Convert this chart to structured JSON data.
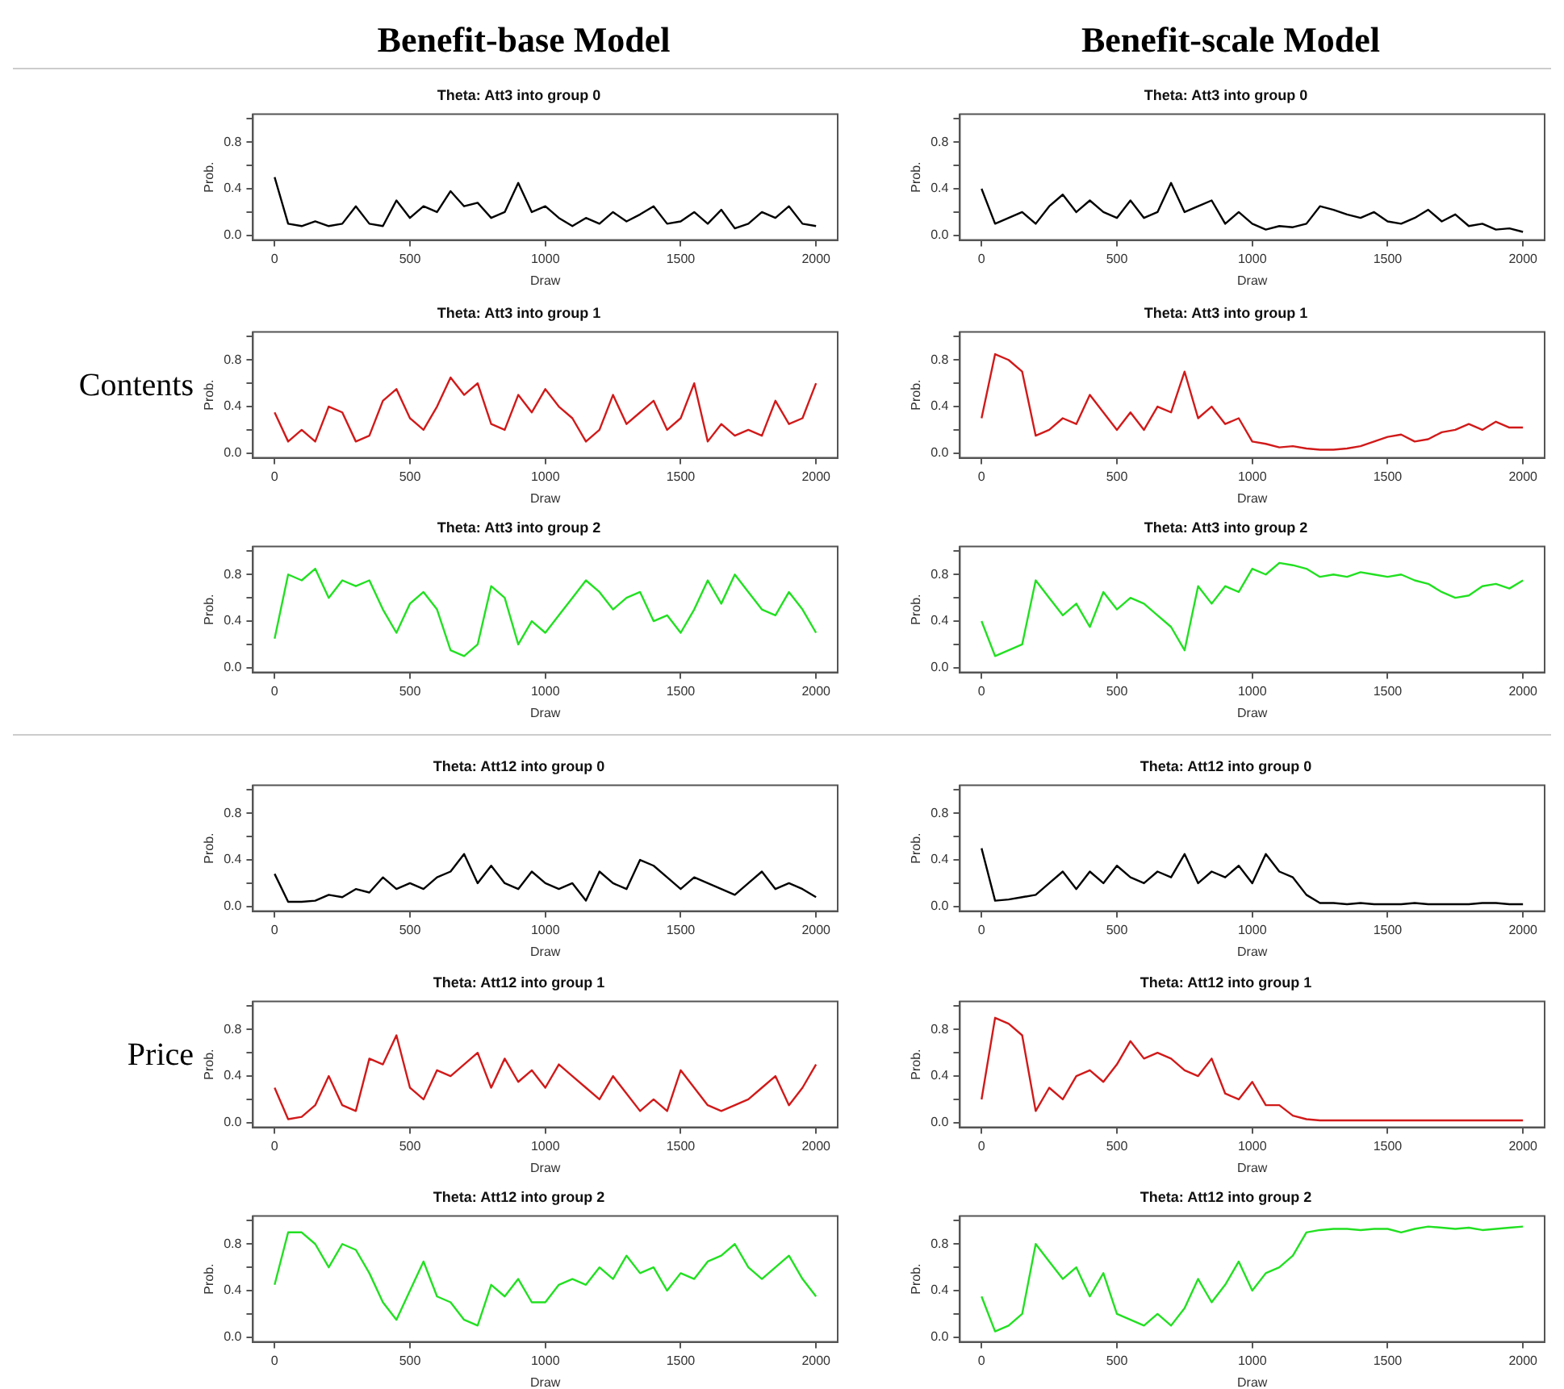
{
  "chart_data": [
    {
      "type": "line",
      "title": "Theta: Att3 into group 0",
      "xlabel": "Draw",
      "ylabel": "Prob.",
      "annotations": [
        "Benefit-base Model"
      ],
      "color": "#000000",
      "xlim": [
        -80,
        2080
      ],
      "ylim": [
        -0.04,
        1.04
      ],
      "xticks": [
        0,
        500,
        1000,
        1500,
        2000
      ],
      "yticks": [
        {
          "value": 0,
          "label": "0.0"
        },
        {
          "value": 0.2,
          "label": null
        },
        {
          "value": 0.4,
          "label": "0.4"
        },
        {
          "value": 0.6,
          "label": null
        },
        {
          "value": 0.8,
          "label": "0.8"
        },
        {
          "value": 1,
          "label": null
        }
      ],
      "x": [
        0,
        50,
        100,
        150,
        200,
        250,
        300,
        350,
        400,
        450,
        500,
        550,
        600,
        650,
        700,
        750,
        800,
        850,
        900,
        950,
        1000,
        1050,
        1100,
        1150,
        1200,
        1250,
        1300,
        1350,
        1400,
        1450,
        1500,
        1550,
        1600,
        1650,
        1700,
        1750,
        1800,
        1850,
        1900,
        1950,
        2000
      ],
      "values": [
        0.5,
        0.1,
        0.08,
        0.12,
        0.08,
        0.1,
        0.25,
        0.1,
        0.08,
        0.3,
        0.15,
        0.25,
        0.2,
        0.38,
        0.25,
        0.28,
        0.15,
        0.2,
        0.45,
        0.2,
        0.25,
        0.15,
        0.08,
        0.15,
        0.1,
        0.2,
        0.12,
        0.18,
        0.25,
        0.1,
        0.12,
        0.2,
        0.1,
        0.22,
        0.06,
        0.1,
        0.2,
        0.15,
        0.25,
        0.1,
        0.08
      ]
    },
    {
      "type": "line",
      "title": "Theta: Att3 into group 0",
      "xlabel": "Draw",
      "ylabel": "Prob.",
      "annotations": [
        "Benefit-scale Model"
      ],
      "color": "#000000",
      "xlim": [
        -80,
        2080
      ],
      "ylim": [
        -0.04,
        1.04
      ],
      "xticks": [
        0,
        500,
        1000,
        1500,
        2000
      ],
      "yticks": [
        {
          "value": 0,
          "label": "0.0"
        },
        {
          "value": 0.2,
          "label": null
        },
        {
          "value": 0.4,
          "label": "0.4"
        },
        {
          "value": 0.6,
          "label": null
        },
        {
          "value": 0.8,
          "label": "0.8"
        },
        {
          "value": 1,
          "label": null
        }
      ],
      "x": [
        0,
        50,
        100,
        150,
        200,
        250,
        300,
        350,
        400,
        450,
        500,
        550,
        600,
        650,
        700,
        750,
        800,
        850,
        900,
        950,
        1000,
        1050,
        1100,
        1150,
        1200,
        1250,
        1300,
        1350,
        1400,
        1450,
        1500,
        1550,
        1600,
        1650,
        1700,
        1750,
        1800,
        1850,
        1900,
        1950,
        2000
      ],
      "values": [
        0.4,
        0.1,
        0.15,
        0.2,
        0.1,
        0.25,
        0.35,
        0.2,
        0.3,
        0.2,
        0.15,
        0.3,
        0.15,
        0.2,
        0.45,
        0.2,
        0.25,
        0.3,
        0.1,
        0.2,
        0.1,
        0.05,
        0.08,
        0.07,
        0.1,
        0.25,
        0.22,
        0.18,
        0.15,
        0.2,
        0.12,
        0.1,
        0.15,
        0.22,
        0.12,
        0.18,
        0.08,
        0.1,
        0.05,
        0.06,
        0.03
      ]
    },
    {
      "type": "line",
      "title": "Theta: Att3 into group 1",
      "xlabel": "Draw",
      "ylabel": "Prob.",
      "annotations": [
        "Contents"
      ],
      "color": "#d11a1a",
      "xlim": [
        -80,
        2080
      ],
      "ylim": [
        -0.04,
        1.04
      ],
      "xticks": [
        0,
        500,
        1000,
        1500,
        2000
      ],
      "yticks": [
        {
          "value": 0,
          "label": "0.0"
        },
        {
          "value": 0.2,
          "label": null
        },
        {
          "value": 0.4,
          "label": "0.4"
        },
        {
          "value": 0.6,
          "label": null
        },
        {
          "value": 0.8,
          "label": "0.8"
        },
        {
          "value": 1,
          "label": null
        }
      ],
      "x": [
        0,
        50,
        100,
        150,
        200,
        250,
        300,
        350,
        400,
        450,
        500,
        550,
        600,
        650,
        700,
        750,
        800,
        850,
        900,
        950,
        1000,
        1050,
        1100,
        1150,
        1200,
        1250,
        1300,
        1350,
        1400,
        1450,
        1500,
        1550,
        1600,
        1650,
        1700,
        1750,
        1800,
        1850,
        1900,
        1950,
        2000
      ],
      "values": [
        0.35,
        0.1,
        0.2,
        0.1,
        0.4,
        0.35,
        0.1,
        0.15,
        0.45,
        0.55,
        0.3,
        0.2,
        0.4,
        0.65,
        0.5,
        0.6,
        0.25,
        0.2,
        0.5,
        0.35,
        0.55,
        0.4,
        0.3,
        0.1,
        0.2,
        0.5,
        0.25,
        0.35,
        0.45,
        0.2,
        0.3,
        0.6,
        0.1,
        0.25,
        0.15,
        0.2,
        0.15,
        0.45,
        0.25,
        0.3,
        0.6
      ]
    },
    {
      "type": "line",
      "title": "Theta: Att3 into group 1",
      "xlabel": "Draw",
      "ylabel": "Prob.",
      "color": "#d11a1a",
      "xlim": [
        -80,
        2080
      ],
      "ylim": [
        -0.04,
        1.04
      ],
      "xticks": [
        0,
        500,
        1000,
        1500,
        2000
      ],
      "yticks": [
        {
          "value": 0,
          "label": "0.0"
        },
        {
          "value": 0.2,
          "label": null
        },
        {
          "value": 0.4,
          "label": "0.4"
        },
        {
          "value": 0.6,
          "label": null
        },
        {
          "value": 0.8,
          "label": "0.8"
        },
        {
          "value": 1,
          "label": null
        }
      ],
      "x": [
        0,
        50,
        100,
        150,
        200,
        250,
        300,
        350,
        400,
        450,
        500,
        550,
        600,
        650,
        700,
        750,
        800,
        850,
        900,
        950,
        1000,
        1050,
        1100,
        1150,
        1200,
        1250,
        1300,
        1350,
        1400,
        1450,
        1500,
        1550,
        1600,
        1650,
        1700,
        1750,
        1800,
        1850,
        1900,
        1950,
        2000
      ],
      "values": [
        0.3,
        0.85,
        0.8,
        0.7,
        0.15,
        0.2,
        0.3,
        0.25,
        0.5,
        0.35,
        0.2,
        0.35,
        0.2,
        0.4,
        0.35,
        0.7,
        0.3,
        0.4,
        0.25,
        0.3,
        0.1,
        0.08,
        0.05,
        0.06,
        0.04,
        0.03,
        0.03,
        0.04,
        0.06,
        0.1,
        0.14,
        0.16,
        0.1,
        0.12,
        0.18,
        0.2,
        0.25,
        0.2,
        0.27,
        0.22,
        0.22
      ]
    },
    {
      "type": "line",
      "title": "Theta: Att3 into group 2",
      "xlabel": "Draw",
      "ylabel": "Prob.",
      "color": "#22e022",
      "xlim": [
        -80,
        2080
      ],
      "ylim": [
        -0.04,
        1.04
      ],
      "xticks": [
        0,
        500,
        1000,
        1500,
        2000
      ],
      "yticks": [
        {
          "value": 0,
          "label": "0.0"
        },
        {
          "value": 0.2,
          "label": null
        },
        {
          "value": 0.4,
          "label": "0.4"
        },
        {
          "value": 0.6,
          "label": null
        },
        {
          "value": 0.8,
          "label": "0.8"
        },
        {
          "value": 1,
          "label": null
        }
      ],
      "x": [
        0,
        50,
        100,
        150,
        200,
        250,
        300,
        350,
        400,
        450,
        500,
        550,
        600,
        650,
        700,
        750,
        800,
        850,
        900,
        950,
        1000,
        1050,
        1100,
        1150,
        1200,
        1250,
        1300,
        1350,
        1400,
        1450,
        1500,
        1550,
        1600,
        1650,
        1700,
        1750,
        1800,
        1850,
        1900,
        1950,
        2000
      ],
      "values": [
        0.25,
        0.8,
        0.75,
        0.85,
        0.6,
        0.75,
        0.7,
        0.75,
        0.5,
        0.3,
        0.55,
        0.65,
        0.5,
        0.15,
        0.1,
        0.2,
        0.7,
        0.6,
        0.2,
        0.4,
        0.3,
        0.45,
        0.6,
        0.75,
        0.65,
        0.5,
        0.6,
        0.65,
        0.4,
        0.45,
        0.3,
        0.5,
        0.75,
        0.55,
        0.8,
        0.65,
        0.5,
        0.45,
        0.65,
        0.5,
        0.3
      ]
    },
    {
      "type": "line",
      "title": "Theta: Att3 into group 2",
      "xlabel": "Draw",
      "ylabel": "Prob.",
      "color": "#22e022",
      "xlim": [
        -80,
        2080
      ],
      "ylim": [
        -0.04,
        1.04
      ],
      "xticks": [
        0,
        500,
        1000,
        1500,
        2000
      ],
      "yticks": [
        {
          "value": 0,
          "label": "0.0"
        },
        {
          "value": 0.2,
          "label": null
        },
        {
          "value": 0.4,
          "label": "0.4"
        },
        {
          "value": 0.6,
          "label": null
        },
        {
          "value": 0.8,
          "label": "0.8"
        },
        {
          "value": 1,
          "label": null
        }
      ],
      "x": [
        0,
        50,
        100,
        150,
        200,
        250,
        300,
        350,
        400,
        450,
        500,
        550,
        600,
        650,
        700,
        750,
        800,
        850,
        900,
        950,
        1000,
        1050,
        1100,
        1150,
        1200,
        1250,
        1300,
        1350,
        1400,
        1450,
        1500,
        1550,
        1600,
        1650,
        1700,
        1750,
        1800,
        1850,
        1900,
        1950,
        2000
      ],
      "values": [
        0.4,
        0.1,
        0.15,
        0.2,
        0.75,
        0.6,
        0.45,
        0.55,
        0.35,
        0.65,
        0.5,
        0.6,
        0.55,
        0.45,
        0.35,
        0.15,
        0.7,
        0.55,
        0.7,
        0.65,
        0.85,
        0.8,
        0.9,
        0.88,
        0.85,
        0.78,
        0.8,
        0.78,
        0.82,
        0.8,
        0.78,
        0.8,
        0.75,
        0.72,
        0.65,
        0.6,
        0.62,
        0.7,
        0.72,
        0.68,
        0.75
      ]
    },
    {
      "type": "line",
      "title": "Theta: Att12 into group 0",
      "xlabel": "Draw",
      "ylabel": "Prob.",
      "color": "#000000",
      "xlim": [
        -80,
        2080
      ],
      "ylim": [
        -0.04,
        1.04
      ],
      "xticks": [
        0,
        500,
        1000,
        1500,
        2000
      ],
      "yticks": [
        {
          "value": 0,
          "label": "0.0"
        },
        {
          "value": 0.2,
          "label": null
        },
        {
          "value": 0.4,
          "label": "0.4"
        },
        {
          "value": 0.6,
          "label": null
        },
        {
          "value": 0.8,
          "label": "0.8"
        },
        {
          "value": 1,
          "label": null
        }
      ],
      "x": [
        0,
        50,
        100,
        150,
        200,
        250,
        300,
        350,
        400,
        450,
        500,
        550,
        600,
        650,
        700,
        750,
        800,
        850,
        900,
        950,
        1000,
        1050,
        1100,
        1150,
        1200,
        1250,
        1300,
        1350,
        1400,
        1450,
        1500,
        1550,
        1600,
        1650,
        1700,
        1750,
        1800,
        1850,
        1900,
        1950,
        2000
      ],
      "values": [
        0.28,
        0.04,
        0.04,
        0.05,
        0.1,
        0.08,
        0.15,
        0.12,
        0.25,
        0.15,
        0.2,
        0.15,
        0.25,
        0.3,
        0.45,
        0.2,
        0.35,
        0.2,
        0.15,
        0.3,
        0.2,
        0.15,
        0.2,
        0.05,
        0.3,
        0.2,
        0.15,
        0.4,
        0.35,
        0.25,
        0.15,
        0.25,
        0.2,
        0.15,
        0.1,
        0.2,
        0.3,
        0.15,
        0.2,
        0.15,
        0.08
      ]
    },
    {
      "type": "line",
      "title": "Theta: Att12 into group 0",
      "xlabel": "Draw",
      "ylabel": "Prob.",
      "color": "#000000",
      "xlim": [
        -80,
        2080
      ],
      "ylim": [
        -0.04,
        1.04
      ],
      "xticks": [
        0,
        500,
        1000,
        1500,
        2000
      ],
      "yticks": [
        {
          "value": 0,
          "label": "0.0"
        },
        {
          "value": 0.2,
          "label": null
        },
        {
          "value": 0.4,
          "label": "0.4"
        },
        {
          "value": 0.6,
          "label": null
        },
        {
          "value": 0.8,
          "label": "0.8"
        },
        {
          "value": 1,
          "label": null
        }
      ],
      "x": [
        0,
        50,
        100,
        150,
        200,
        250,
        300,
        350,
        400,
        450,
        500,
        550,
        600,
        650,
        700,
        750,
        800,
        850,
        900,
        950,
        1000,
        1050,
        1100,
        1150,
        1200,
        1250,
        1300,
        1350,
        1400,
        1450,
        1500,
        1550,
        1600,
        1650,
        1700,
        1750,
        1800,
        1850,
        1900,
        1950,
        2000
      ],
      "values": [
        0.5,
        0.05,
        0.06,
        0.08,
        0.1,
        0.2,
        0.3,
        0.15,
        0.3,
        0.2,
        0.35,
        0.25,
        0.2,
        0.3,
        0.25,
        0.45,
        0.2,
        0.3,
        0.25,
        0.35,
        0.2,
        0.45,
        0.3,
        0.25,
        0.1,
        0.03,
        0.03,
        0.02,
        0.03,
        0.02,
        0.02,
        0.02,
        0.03,
        0.02,
        0.02,
        0.02,
        0.02,
        0.03,
        0.03,
        0.02,
        0.02
      ]
    },
    {
      "type": "line",
      "title": "Theta: Att12 into group 1",
      "xlabel": "Draw",
      "ylabel": "Prob.",
      "annotations": [
        "Price"
      ],
      "color": "#d11a1a",
      "xlim": [
        -80,
        2080
      ],
      "ylim": [
        -0.04,
        1.04
      ],
      "xticks": [
        0,
        500,
        1000,
        1500,
        2000
      ],
      "yticks": [
        {
          "value": 0,
          "label": "0.0"
        },
        {
          "value": 0.2,
          "label": null
        },
        {
          "value": 0.4,
          "label": "0.4"
        },
        {
          "value": 0.6,
          "label": null
        },
        {
          "value": 0.8,
          "label": "0.8"
        },
        {
          "value": 1,
          "label": null
        }
      ],
      "x": [
        0,
        50,
        100,
        150,
        200,
        250,
        300,
        350,
        400,
        450,
        500,
        550,
        600,
        650,
        700,
        750,
        800,
        850,
        900,
        950,
        1000,
        1050,
        1100,
        1150,
        1200,
        1250,
        1300,
        1350,
        1400,
        1450,
        1500,
        1550,
        1600,
        1650,
        1700,
        1750,
        1800,
        1850,
        1900,
        1950,
        2000
      ],
      "values": [
        0.3,
        0.03,
        0.05,
        0.15,
        0.4,
        0.15,
        0.1,
        0.55,
        0.5,
        0.75,
        0.3,
        0.2,
        0.45,
        0.4,
        0.5,
        0.6,
        0.3,
        0.55,
        0.35,
        0.45,
        0.3,
        0.5,
        0.4,
        0.3,
        0.2,
        0.4,
        0.25,
        0.1,
        0.2,
        0.1,
        0.45,
        0.3,
        0.15,
        0.1,
        0.15,
        0.2,
        0.3,
        0.4,
        0.15,
        0.3,
        0.5
      ]
    },
    {
      "type": "line",
      "title": "Theta: Att12 into group 1",
      "xlabel": "Draw",
      "ylabel": "Prob.",
      "color": "#d11a1a",
      "xlim": [
        -80,
        2080
      ],
      "ylim": [
        -0.04,
        1.04
      ],
      "xticks": [
        0,
        500,
        1000,
        1500,
        2000
      ],
      "yticks": [
        {
          "value": 0,
          "label": "0.0"
        },
        {
          "value": 0.2,
          "label": null
        },
        {
          "value": 0.4,
          "label": "0.4"
        },
        {
          "value": 0.6,
          "label": null
        },
        {
          "value": 0.8,
          "label": "0.8"
        },
        {
          "value": 1,
          "label": null
        }
      ],
      "x": [
        0,
        50,
        100,
        150,
        200,
        250,
        300,
        350,
        400,
        450,
        500,
        550,
        600,
        650,
        700,
        750,
        800,
        850,
        900,
        950,
        1000,
        1050,
        1100,
        1150,
        1200,
        1250,
        1300,
        1350,
        1400,
        1450,
        1500,
        1550,
        1600,
        1650,
        1700,
        1750,
        1800,
        1850,
        1900,
        1950,
        2000
      ],
      "values": [
        0.2,
        0.9,
        0.85,
        0.75,
        0.1,
        0.3,
        0.2,
        0.4,
        0.45,
        0.35,
        0.5,
        0.7,
        0.55,
        0.6,
        0.55,
        0.45,
        0.4,
        0.55,
        0.25,
        0.2,
        0.35,
        0.15,
        0.15,
        0.06,
        0.03,
        0.02,
        0.02,
        0.02,
        0.02,
        0.02,
        0.02,
        0.02,
        0.02,
        0.02,
        0.02,
        0.02,
        0.02,
        0.02,
        0.02,
        0.02,
        0.02
      ]
    },
    {
      "type": "line",
      "title": "Theta: Att12 into group 2",
      "xlabel": "Draw",
      "ylabel": "Prob.",
      "color": "#22e022",
      "xlim": [
        -80,
        2080
      ],
      "ylim": [
        -0.04,
        1.04
      ],
      "xticks": [
        0,
        500,
        1000,
        1500,
        2000
      ],
      "yticks": [
        {
          "value": 0,
          "label": "0.0"
        },
        {
          "value": 0.2,
          "label": null
        },
        {
          "value": 0.4,
          "label": "0.4"
        },
        {
          "value": 0.6,
          "label": null
        },
        {
          "value": 0.8,
          "label": "0.8"
        },
        {
          "value": 1,
          "label": null
        }
      ],
      "x": [
        0,
        50,
        100,
        150,
        200,
        250,
        300,
        350,
        400,
        450,
        500,
        550,
        600,
        650,
        700,
        750,
        800,
        850,
        900,
        950,
        1000,
        1050,
        1100,
        1150,
        1200,
        1250,
        1300,
        1350,
        1400,
        1450,
        1500,
        1550,
        1600,
        1650,
        1700,
        1750,
        1800,
        1850,
        1900,
        1950,
        2000
      ],
      "values": [
        0.45,
        0.9,
        0.9,
        0.8,
        0.6,
        0.8,
        0.75,
        0.55,
        0.3,
        0.15,
        0.4,
        0.65,
        0.35,
        0.3,
        0.15,
        0.1,
        0.45,
        0.35,
        0.5,
        0.3,
        0.3,
        0.45,
        0.5,
        0.45,
        0.6,
        0.5,
        0.7,
        0.55,
        0.6,
        0.4,
        0.55,
        0.5,
        0.65,
        0.7,
        0.8,
        0.6,
        0.5,
        0.6,
        0.7,
        0.5,
        0.35
      ]
    },
    {
      "type": "line",
      "title": "Theta: Att12 into group 2",
      "xlabel": "Draw",
      "ylabel": "Prob.",
      "color": "#22e022",
      "xlim": [
        -80,
        2080
      ],
      "ylim": [
        -0.04,
        1.04
      ],
      "xticks": [
        0,
        500,
        1000,
        1500,
        2000
      ],
      "yticks": [
        {
          "value": 0,
          "label": "0.0"
        },
        {
          "value": 0.2,
          "label": null
        },
        {
          "value": 0.4,
          "label": "0.4"
        },
        {
          "value": 0.6,
          "label": null
        },
        {
          "value": 0.8,
          "label": "0.8"
        },
        {
          "value": 1,
          "label": null
        }
      ],
      "x": [
        0,
        50,
        100,
        150,
        200,
        250,
        300,
        350,
        400,
        450,
        500,
        550,
        600,
        650,
        700,
        750,
        800,
        850,
        900,
        950,
        1000,
        1050,
        1100,
        1150,
        1200,
        1250,
        1300,
        1350,
        1400,
        1450,
        1500,
        1550,
        1600,
        1650,
        1700,
        1750,
        1800,
        1850,
        1900,
        1950,
        2000
      ],
      "values": [
        0.35,
        0.05,
        0.1,
        0.2,
        0.8,
        0.65,
        0.5,
        0.6,
        0.35,
        0.55,
        0.2,
        0.15,
        0.1,
        0.2,
        0.1,
        0.25,
        0.5,
        0.3,
        0.45,
        0.65,
        0.4,
        0.55,
        0.6,
        0.7,
        0.9,
        0.92,
        0.93,
        0.93,
        0.92,
        0.93,
        0.93,
        0.9,
        0.93,
        0.95,
        0.94,
        0.93,
        0.94,
        0.92,
        0.93,
        0.94,
        0.95
      ]
    }
  ]
}
